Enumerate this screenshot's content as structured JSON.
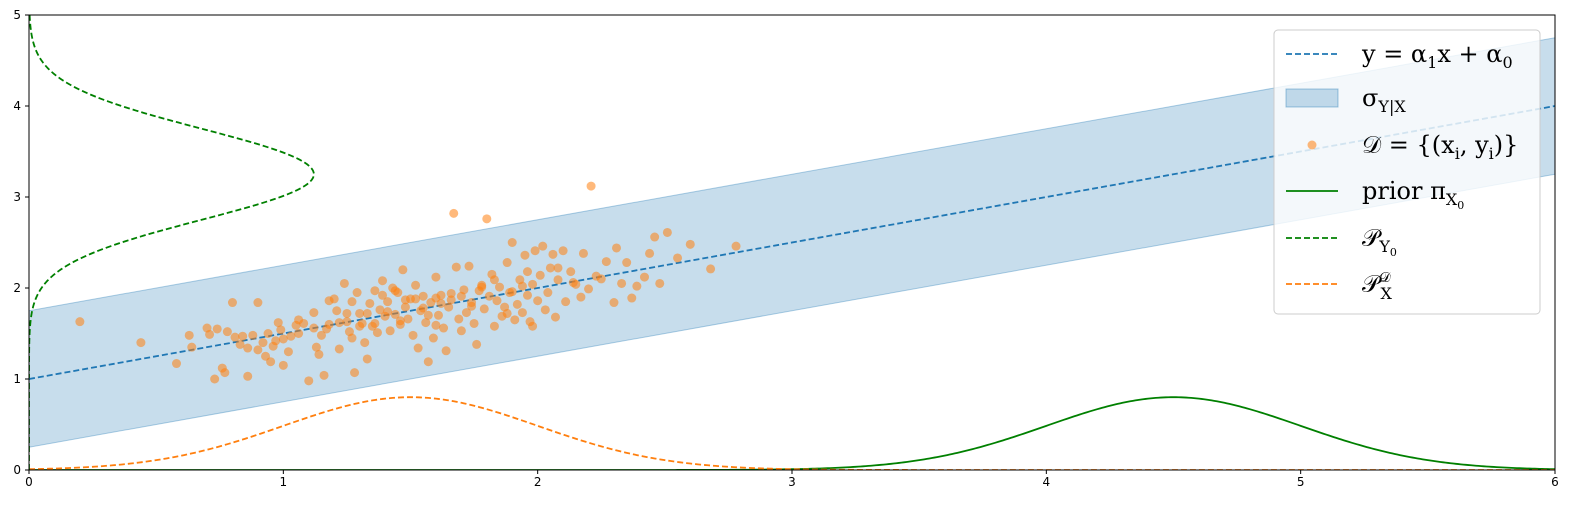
{
  "chart_data": {
    "type": "scatter",
    "xlim": [
      0,
      6
    ],
    "ylim": [
      0,
      5
    ],
    "x_ticks": [
      0,
      1,
      2,
      3,
      4,
      5,
      6
    ],
    "y_ticks": [
      0,
      1,
      2,
      3,
      4,
      5
    ],
    "grid": false,
    "legend_position": "top-right",
    "colors": {
      "blue": "#1f77b4",
      "orange": "#ff7f0e",
      "green": "#008000",
      "band": "#aac7e2"
    },
    "regression_line": {
      "slope": 0.5,
      "intercept": 1.0,
      "style": "dashed",
      "color": "#1f77b4"
    },
    "conditional_std_band": {
      "lower_offset": -0.75,
      "upper_offset": 0.75,
      "color": "#1f77b4",
      "alpha": 0.25
    },
    "prior_pi_X0": {
      "mean": 4.5,
      "std": 0.5,
      "peak": 0.8,
      "style": "solid",
      "color": "#008000"
    },
    "P_Y0": {
      "mean": 3.25,
      "std": 0.5,
      "peak": 1.12,
      "baseline_x": 0,
      "orientation": "vertical",
      "style": "dashed",
      "color": "#008000"
    },
    "P_X_D": {
      "mean": 1.5,
      "std": 0.5,
      "peak": 0.8,
      "style": "dashed",
      "color": "#ff7f0e"
    },
    "points": [
      [
        0.2,
        1.63
      ],
      [
        0.44,
        1.4
      ],
      [
        0.58,
        1.17
      ],
      [
        0.63,
        1.48
      ],
      [
        0.64,
        1.35
      ],
      [
        0.7,
        1.56
      ],
      [
        0.71,
        1.49
      ],
      [
        0.73,
        1.0
      ],
      [
        0.74,
        1.55
      ],
      [
        0.76,
        1.12
      ],
      [
        0.77,
        1.07
      ],
      [
        0.78,
        1.52
      ],
      [
        0.8,
        1.84
      ],
      [
        0.81,
        1.46
      ],
      [
        0.83,
        1.38
      ],
      [
        0.84,
        1.47
      ],
      [
        0.86,
        1.03
      ],
      [
        0.86,
        1.34
      ],
      [
        0.88,
        1.48
      ],
      [
        0.9,
        1.32
      ],
      [
        0.9,
        1.84
      ],
      [
        0.92,
        1.4
      ],
      [
        0.93,
        1.25
      ],
      [
        0.95,
        1.19
      ],
      [
        0.97,
        1.42
      ],
      [
        0.98,
        1.62
      ],
      [
        0.99,
        1.54
      ],
      [
        1.0,
        1.15
      ],
      [
        1.02,
        1.3
      ],
      [
        1.03,
        1.47
      ],
      [
        1.05,
        1.59
      ],
      [
        1.06,
        1.65
      ],
      [
        1.08,
        1.61
      ],
      [
        1.1,
        0.98
      ],
      [
        1.12,
        1.73
      ],
      [
        1.13,
        1.35
      ],
      [
        1.14,
        1.27
      ],
      [
        1.16,
        1.04
      ],
      [
        1.17,
        1.55
      ],
      [
        1.18,
        1.6
      ],
      [
        1.2,
        1.88
      ],
      [
        1.21,
        1.75
      ],
      [
        1.22,
        1.33
      ],
      [
        1.24,
        2.05
      ],
      [
        1.25,
        1.63
      ],
      [
        1.26,
        1.52
      ],
      [
        1.27,
        1.85
      ],
      [
        1.28,
        1.07
      ],
      [
        1.29,
        1.95
      ],
      [
        1.3,
        1.72
      ],
      [
        1.31,
        1.61
      ],
      [
        1.32,
        1.4
      ],
      [
        1.33,
        1.22
      ],
      [
        1.34,
        1.83
      ],
      [
        1.35,
        1.58
      ],
      [
        1.36,
        1.97
      ],
      [
        1.37,
        1.51
      ],
      [
        1.38,
        1.76
      ],
      [
        1.39,
        2.08
      ],
      [
        1.4,
        1.69
      ],
      [
        1.41,
        1.85
      ],
      [
        1.42,
        1.53
      ],
      [
        1.43,
        2.0
      ],
      [
        1.44,
        1.71
      ],
      [
        1.45,
        1.95
      ],
      [
        1.46,
        1.6
      ],
      [
        1.47,
        2.2
      ],
      [
        1.48,
        1.79
      ],
      [
        1.49,
        1.66
      ],
      [
        1.5,
        1.88
      ],
      [
        1.51,
        1.48
      ],
      [
        1.52,
        2.03
      ],
      [
        1.53,
        1.34
      ],
      [
        1.54,
        1.75
      ],
      [
        1.55,
        1.91
      ],
      [
        1.56,
        1.62
      ],
      [
        1.57,
        1.19
      ],
      [
        1.58,
        1.84
      ],
      [
        1.59,
        1.45
      ],
      [
        1.6,
        2.12
      ],
      [
        1.61,
        1.7
      ],
      [
        1.62,
        1.92
      ],
      [
        1.63,
        1.56
      ],
      [
        1.64,
        1.31
      ],
      [
        1.65,
        1.79
      ],
      [
        1.66,
        1.94
      ],
      [
        1.67,
        2.82
      ],
      [
        1.68,
        2.23
      ],
      [
        1.69,
        1.66
      ],
      [
        1.7,
        1.53
      ],
      [
        1.71,
        1.98
      ],
      [
        1.72,
        1.73
      ],
      [
        1.73,
        2.24
      ],
      [
        1.74,
        1.84
      ],
      [
        1.75,
        1.61
      ],
      [
        1.76,
        1.38
      ],
      [
        1.77,
        1.97
      ],
      [
        1.78,
        2.03
      ],
      [
        1.79,
        1.77
      ],
      [
        1.8,
        2.76
      ],
      [
        1.81,
        1.91
      ],
      [
        1.82,
        2.15
      ],
      [
        1.83,
        1.58
      ],
      [
        1.84,
        1.86
      ],
      [
        1.85,
        2.01
      ],
      [
        1.86,
        1.69
      ],
      [
        1.87,
        1.79
      ],
      [
        1.88,
        2.28
      ],
      [
        1.89,
        1.95
      ],
      [
        1.9,
        2.5
      ],
      [
        1.91,
        1.65
      ],
      [
        1.92,
        1.82
      ],
      [
        1.93,
        2.09
      ],
      [
        1.94,
        1.73
      ],
      [
        1.95,
        2.36
      ],
      [
        1.96,
        1.92
      ],
      [
        1.97,
        1.63
      ],
      [
        1.98,
        2.04
      ],
      [
        1.99,
        2.41
      ],
      [
        2.0,
        1.86
      ],
      [
        2.01,
        2.14
      ],
      [
        2.02,
        2.46
      ],
      [
        2.03,
        1.76
      ],
      [
        2.04,
        1.95
      ],
      [
        2.05,
        2.22
      ],
      [
        2.06,
        2.37
      ],
      [
        2.07,
        1.68
      ],
      [
        2.08,
        2.09
      ],
      [
        2.1,
        2.41
      ],
      [
        2.11,
        1.85
      ],
      [
        2.13,
        2.18
      ],
      [
        2.15,
        2.04
      ],
      [
        2.17,
        1.9
      ],
      [
        2.18,
        2.38
      ],
      [
        2.2,
        1.99
      ],
      [
        2.21,
        3.12
      ],
      [
        2.23,
        2.13
      ],
      [
        2.25,
        2.1
      ],
      [
        2.27,
        2.29
      ],
      [
        2.3,
        1.84
      ],
      [
        2.31,
        2.44
      ],
      [
        2.33,
        2.05
      ],
      [
        2.35,
        2.28
      ],
      [
        2.37,
        1.89
      ],
      [
        2.39,
        2.02
      ],
      [
        2.42,
        2.12
      ],
      [
        2.44,
        2.38
      ],
      [
        2.46,
        2.56
      ],
      [
        2.48,
        2.05
      ],
      [
        2.51,
        2.61
      ],
      [
        2.55,
        2.33
      ],
      [
        2.6,
        2.48
      ],
      [
        2.68,
        2.21
      ],
      [
        2.78,
        2.46
      ],
      [
        1.52,
        1.88
      ],
      [
        1.33,
        1.72
      ],
      [
        1.6,
        1.89
      ],
      [
        1.25,
        1.72
      ],
      [
        1.12,
        1.56
      ],
      [
        1.41,
        1.74
      ],
      [
        1.94,
        2.02
      ],
      [
        1.0,
        1.44
      ],
      [
        1.18,
        1.86
      ],
      [
        1.57,
        1.7
      ],
      [
        1.44,
        1.97
      ],
      [
        1.74,
        1.8
      ],
      [
        0.94,
        1.5
      ],
      [
        1.66,
        1.87
      ],
      [
        1.88,
        1.72
      ],
      [
        1.3,
        1.58
      ],
      [
        2.08,
        2.22
      ],
      [
        1.98,
        1.58
      ],
      [
        1.62,
        1.83
      ],
      [
        1.36,
        1.61
      ],
      [
        1.27,
        1.45
      ],
      [
        1.48,
        1.87
      ],
      [
        1.7,
        1.91
      ],
      [
        1.78,
        2.01
      ],
      [
        1.9,
        1.96
      ],
      [
        2.14,
        2.06
      ],
      [
        0.96,
        1.36
      ],
      [
        1.06,
        1.5
      ],
      [
        1.22,
        1.62
      ],
      [
        1.15,
        1.48
      ],
      [
        1.39,
        1.92
      ],
      [
        1.55,
        1.78
      ],
      [
        1.46,
        1.64
      ],
      [
        1.83,
        2.09
      ],
      [
        1.96,
        2.18
      ],
      [
        1.6,
        1.59
      ]
    ],
    "legend": [
      {
        "key": "regression",
        "label_prefix": "y = α",
        "sub": "1",
        "label_mid": "x + α",
        "sub2": "0"
      },
      {
        "key": "band",
        "label": "σ",
        "sub": "Y|X"
      },
      {
        "key": "data",
        "label": "𝒟 = {(x",
        "sub": "i",
        "label_mid": ", y",
        "sub2": "i",
        "label_end": ")}"
      },
      {
        "key": "prior",
        "label": "prior π",
        "sub": "X",
        "subsub": "0"
      },
      {
        "key": "py0",
        "label": "𝒫",
        "sub": "Y",
        "subsub": "0"
      },
      {
        "key": "pxd",
        "label": "𝒫",
        "sub": "X",
        "sup": "𝒟"
      }
    ]
  }
}
